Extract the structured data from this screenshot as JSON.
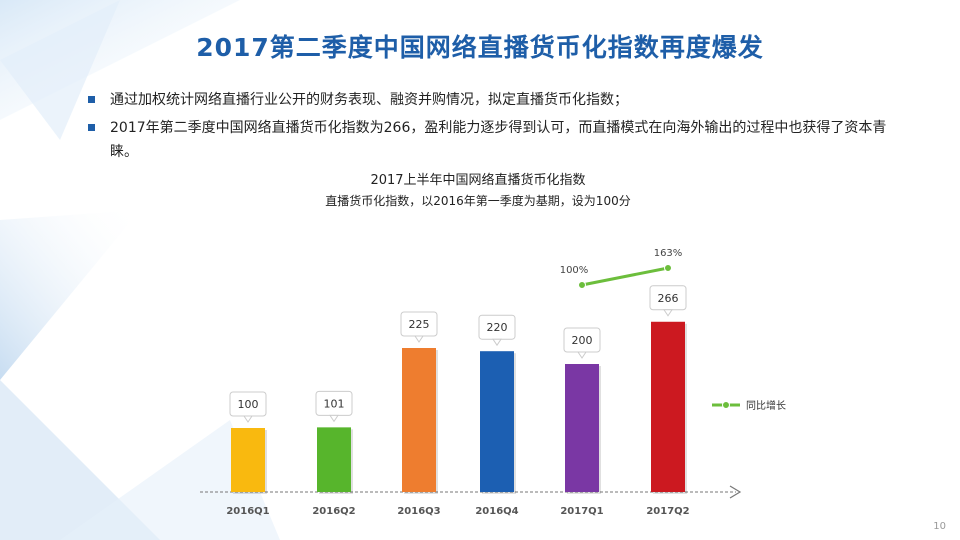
{
  "slide": {
    "title": "2017第二季度中国网络直播货币化指数再度爆发",
    "bullets": [
      "通过加权统计网络直播行业公开的财务表现、融资并购情况，拟定直播货币化指数；",
      "2017年第二季度中国网络直播货币化指数为266，盈利能力逐步得到认可，而直播模式在向海外输出的过程中也获得了资本青睐。"
    ],
    "page_number": "10"
  },
  "colors": {
    "title": "#1e5ea8",
    "bars": [
      "#f9b90f",
      "#57b52c",
      "#ee7d2f",
      "#1c5fb2",
      "#7a37a4",
      "#cc1920"
    ],
    "growth_line": "#6cbe3c"
  },
  "chart_data": {
    "type": "bar",
    "title": "2017上半年中国网络直播货币化指数",
    "subtitle": "直播货币化指数，以2016年第一季度为基期，设为100分",
    "categories": [
      "2016Q1",
      "2016Q2",
      "2016Q3",
      "2016Q4",
      "2017Q1",
      "2017Q2"
    ],
    "series": [
      {
        "values": [
          100,
          101,
          225,
          220,
          200,
          266
        ],
        "labels": [
          "100",
          "101",
          "225",
          "220",
          "200",
          "266"
        ]
      },
      {
        "name": "同比增长",
        "type": "line",
        "x": [
          "2017Q1",
          "2017Q2"
        ],
        "values": [
          100,
          163
        ],
        "labels": [
          "100%",
          "163%"
        ]
      }
    ],
    "legend": "right",
    "grid": false
  }
}
